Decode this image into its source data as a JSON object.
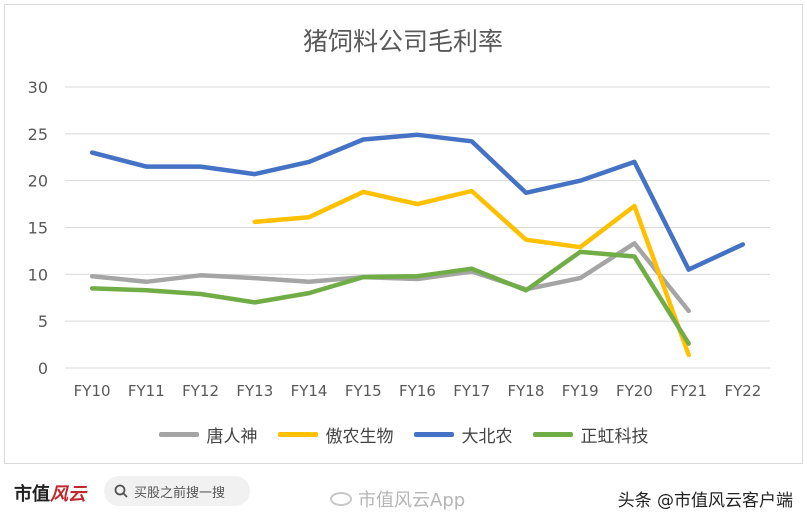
{
  "chart_data": {
    "type": "line",
    "title": "猪饲料公司毛利率",
    "categories": [
      "FY10",
      "FY11",
      "FY12",
      "FY13",
      "FY14",
      "FY15",
      "FY16",
      "FY17",
      "FY18",
      "FY19",
      "FY20",
      "FY21",
      "FY22"
    ],
    "ylim": [
      0,
      30
    ],
    "yticks": [
      0,
      5,
      10,
      15,
      20,
      25,
      30
    ],
    "grid": true,
    "legend_position": "bottom",
    "series": [
      {
        "name": "唐人神",
        "color": "#a5a5a5",
        "values": [
          9.8,
          9.2,
          9.9,
          9.6,
          9.2,
          9.7,
          9.5,
          10.3,
          8.4,
          9.6,
          13.3,
          6.1,
          null
        ]
      },
      {
        "name": "傲农生物",
        "color": "#ffc000",
        "values": [
          null,
          null,
          null,
          15.6,
          16.1,
          18.8,
          17.5,
          18.9,
          13.7,
          12.9,
          17.3,
          1.4,
          null
        ]
      },
      {
        "name": "大北农",
        "color": "#4472c4",
        "values": [
          23.0,
          21.5,
          21.5,
          20.7,
          22.0,
          24.4,
          24.9,
          24.2,
          18.7,
          20.0,
          22.0,
          10.5,
          13.2
        ]
      },
      {
        "name": "正虹科技",
        "color": "#70ad47",
        "values": [
          8.5,
          8.3,
          7.9,
          7.0,
          8.0,
          9.7,
          9.8,
          10.6,
          8.3,
          12.4,
          11.9,
          2.6,
          null
        ]
      }
    ]
  },
  "footer": {
    "brand_text": "市值",
    "brand_mark": "风云",
    "search_text": "买股之前搜一搜",
    "weibo_text": "市值风云App",
    "toutiao_text": "头条 @市值风云客户端"
  }
}
